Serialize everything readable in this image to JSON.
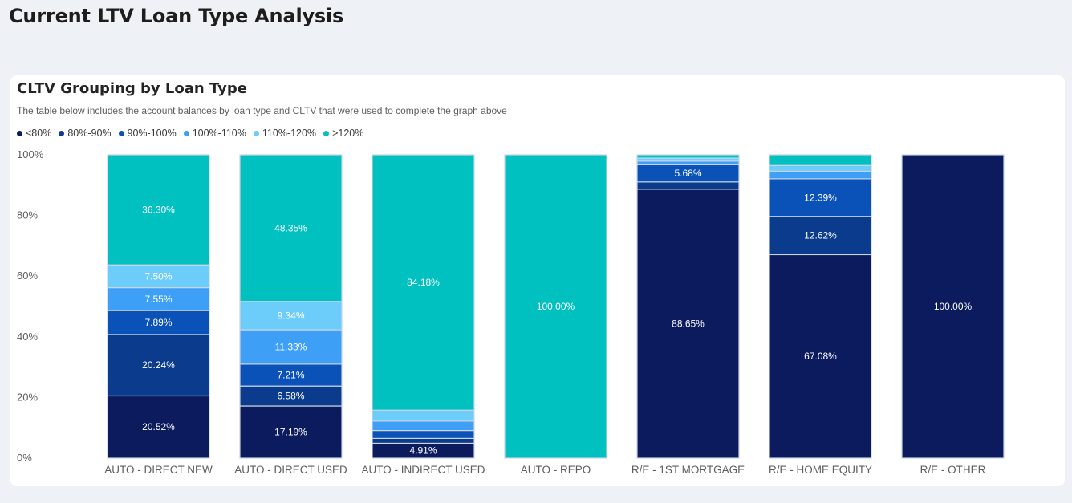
{
  "page": {
    "title": "Current LTV Loan Type Analysis"
  },
  "card": {
    "title": "CLTV Grouping by Loan Type",
    "subtitle": "The table below includes the account balances by loan type and CLTV that were used to complete the graph above"
  },
  "colors": {
    "lt80": "#0c1a5e",
    "b80_90": "#0b3b8c",
    "b90_100": "#0a52b8",
    "b100_110": "#3d9ff5",
    "b110_120": "#6ccdfb",
    "gt120": "#01c1c0"
  },
  "chart_data": {
    "type": "bar",
    "stacked": true,
    "percent_stacked": true,
    "title": "CLTV Grouping by Loan Type",
    "xlabel": "",
    "ylabel": "",
    "ylim": [
      0,
      100
    ],
    "y_ticks": [
      "0%",
      "20%",
      "40%",
      "60%",
      "80%",
      "100%"
    ],
    "legend_position": "top-left",
    "categories": [
      "AUTO - DIRECT NEW",
      "AUTO - DIRECT USED",
      "AUTO - INDIRECT USED",
      "AUTO - REPO",
      "R/E - 1ST MORTGAGE",
      "R/E - HOME EQUITY",
      "R/E - OTHER"
    ],
    "series": [
      {
        "name": "<80%",
        "color_key": "lt80",
        "values": [
          20.52,
          17.19,
          4.91,
          0,
          88.65,
          67.08,
          100.0
        ]
      },
      {
        "name": "80%-90%",
        "color_key": "b80_90",
        "values": [
          20.24,
          6.58,
          1.6,
          0,
          2.4,
          12.62,
          0
        ]
      },
      {
        "name": "90%-100%",
        "color_key": "b90_100",
        "values": [
          7.89,
          7.21,
          2.6,
          0,
          5.68,
          12.39,
          0
        ]
      },
      {
        "name": "100%-110%",
        "color_key": "b100_110",
        "values": [
          7.55,
          11.33,
          3.1,
          0,
          1.2,
          2.5,
          0
        ]
      },
      {
        "name": "110%-120%",
        "color_key": "b110_120",
        "values": [
          7.5,
          9.34,
          3.6,
          0,
          1.0,
          1.9,
          0
        ]
      },
      {
        "name": ">120%",
        "color_key": "gt120",
        "values": [
          36.3,
          48.35,
          84.18,
          100.0,
          1.07,
          3.51,
          0
        ]
      }
    ],
    "data_labels": [
      [
        "20.52%",
        "20.24%",
        "7.89%",
        "7.55%",
        "7.50%",
        "36.30%"
      ],
      [
        "17.19%",
        "6.58%",
        "7.21%",
        "11.33%",
        "9.34%",
        "48.35%"
      ],
      [
        "4.91%",
        "",
        "",
        "",
        "",
        "84.18%"
      ],
      [
        "",
        "",
        "",
        "",
        "",
        "100.00%"
      ],
      [
        "88.65%",
        "",
        "5.68%",
        "",
        "",
        ""
      ],
      [
        "67.08%",
        "12.62%",
        "12.39%",
        "",
        "",
        ""
      ],
      [
        "100.00%",
        "",
        "",
        "",
        "",
        ""
      ]
    ]
  }
}
